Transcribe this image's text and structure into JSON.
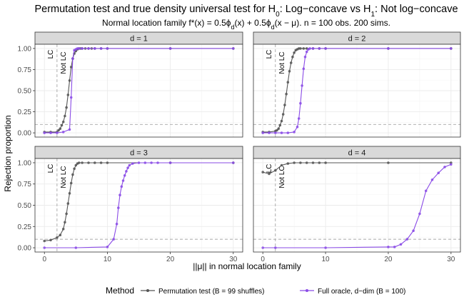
{
  "title": "Permutation test and true density universal test for H",
  "title_sub": "0",
  "title_rest": ": Log−concave vs H",
  "title_sub2": "1",
  "title_end": ": Not log−concave",
  "subtitle": "Normal location family f*(x) = 0.5ϕ",
  "subtitle_sub": "d",
  "subtitle_mid": "(x) + 0.5ϕ",
  "subtitle_sub2": "d",
  "subtitle_end": "(x − μ). n = 100 obs. 200 sims.",
  "colors": {
    "permutation": "#555555",
    "oracle": "#8a4be6",
    "reference": "#a6a6a6"
  },
  "chart_data": {
    "type": "line",
    "xlabel": "||μ|| in normal location family",
    "ylabel": "Rejection proportion",
    "xlim": [
      -1.5,
      31.5
    ],
    "ylim": [
      -0.05,
      1.05
    ],
    "x_ticks": [
      0,
      10,
      20,
      30
    ],
    "x_tick_labels": [
      "0",
      "10",
      "20",
      "30"
    ],
    "y_ticks": [
      0,
      0.25,
      0.5,
      0.75,
      1
    ],
    "y_tick_labels": [
      "0.00",
      "0.25",
      "0.50",
      "0.75",
      "1.00"
    ],
    "alpha_line": 0.1,
    "lc_boundary": 2,
    "lc_label": "LC",
    "not_lc_label": "Not LC",
    "legend_title": "Method",
    "legend_position": "bottom",
    "series_names": [
      "Permutation test (B = 99 shuffles)",
      "Full oracle, d−dim (B = 100)"
    ],
    "panels": [
      {
        "label": "d = 1",
        "permutation": {
          "x": [
            0,
            1,
            2,
            2.25,
            2.5,
            2.75,
            3,
            3.25,
            3.5,
            3.75,
            4,
            4.25,
            4.5,
            4.75,
            5,
            5.25,
            5.5,
            5.75,
            6,
            6.5,
            7,
            7.5,
            8,
            9,
            10,
            20,
            30
          ],
          "y": [
            0.01,
            0.01,
            0.01,
            0.03,
            0.05,
            0.09,
            0.13,
            0.2,
            0.3,
            0.45,
            0.62,
            0.78,
            0.88,
            0.94,
            0.97,
            0.99,
            1,
            1,
            1,
            1,
            1,
            1,
            1,
            1,
            1,
            1,
            1
          ]
        },
        "oracle": {
          "x": [
            0,
            1,
            2,
            3,
            4,
            4.25,
            4.5,
            4.75,
            5,
            5.25,
            5.5,
            6,
            7,
            8,
            9,
            10,
            20,
            30
          ],
          "y": [
            0,
            0,
            0,
            0.01,
            0.04,
            0.42,
            0.88,
            0.98,
            0.99,
            1,
            1,
            1,
            1,
            1,
            1,
            1,
            1,
            1
          ]
        }
      },
      {
        "label": "d = 2",
        "permutation": {
          "x": [
            0,
            1,
            2,
            2.25,
            2.5,
            2.75,
            3,
            3.25,
            3.5,
            3.75,
            4,
            4.25,
            4.5,
            4.75,
            5,
            5.25,
            5.5,
            5.75,
            6,
            6.5,
            7,
            8,
            9,
            10,
            20,
            30
          ],
          "y": [
            0.01,
            0.01,
            0.02,
            0.03,
            0.05,
            0.09,
            0.14,
            0.22,
            0.33,
            0.46,
            0.6,
            0.73,
            0.83,
            0.9,
            0.95,
            0.98,
            0.99,
            1,
            1,
            1,
            1,
            1,
            1,
            1,
            1,
            1
          ]
        },
        "oracle": {
          "x": [
            0,
            1,
            2,
            3,
            4,
            5,
            5.5,
            5.75,
            6,
            6.25,
            6.5,
            6.75,
            7,
            7.25,
            7.5,
            8,
            9,
            10,
            20,
            30
          ],
          "y": [
            0,
            0,
            0,
            0,
            0,
            0.01,
            0.07,
            0.17,
            0.35,
            0.56,
            0.76,
            0.9,
            0.96,
            0.99,
            1,
            1,
            1,
            1,
            1,
            1
          ]
        }
      },
      {
        "label": "d = 3",
        "permutation": {
          "x": [
            0,
            1,
            2,
            2.5,
            3,
            3.25,
            3.5,
            3.75,
            4,
            4.25,
            4.5,
            4.75,
            5,
            5.25,
            5.5,
            6,
            7,
            8,
            9,
            10,
            20,
            30
          ],
          "y": [
            0.08,
            0.09,
            0.12,
            0.15,
            0.22,
            0.3,
            0.4,
            0.52,
            0.64,
            0.76,
            0.86,
            0.93,
            0.97,
            0.99,
            1,
            1,
            1,
            1,
            1,
            1,
            1,
            1
          ]
        },
        "oracle": {
          "x": [
            0,
            5,
            10,
            11,
            11.5,
            11.75,
            12,
            12.25,
            12.5,
            12.75,
            13,
            13.25,
            13.5,
            14,
            15,
            16,
            17,
            18,
            20,
            30
          ],
          "y": [
            0,
            0,
            0.01,
            0.1,
            0.28,
            0.47,
            0.62,
            0.72,
            0.79,
            0.85,
            0.9,
            0.94,
            0.97,
            0.99,
            1,
            1,
            1,
            1,
            1,
            1
          ]
        }
      },
      {
        "label": "d = 4",
        "permutation": {
          "x": [
            0,
            1,
            2,
            3,
            4,
            5,
            6,
            7,
            8,
            9,
            10,
            20,
            30
          ],
          "y": [
            0.89,
            0.87,
            0.91,
            0.97,
            0.99,
            1,
            1,
            1,
            1,
            1,
            1,
            1,
            1
          ]
        },
        "oracle": {
          "x": [
            0,
            2,
            10,
            20,
            21,
            22,
            23,
            24,
            25,
            26,
            27,
            28,
            29,
            30
          ],
          "y": [
            0,
            0,
            0,
            0.01,
            0.01,
            0.04,
            0.1,
            0.2,
            0.4,
            0.67,
            0.8,
            0.88,
            0.95,
            0.98
          ]
        }
      }
    ]
  }
}
